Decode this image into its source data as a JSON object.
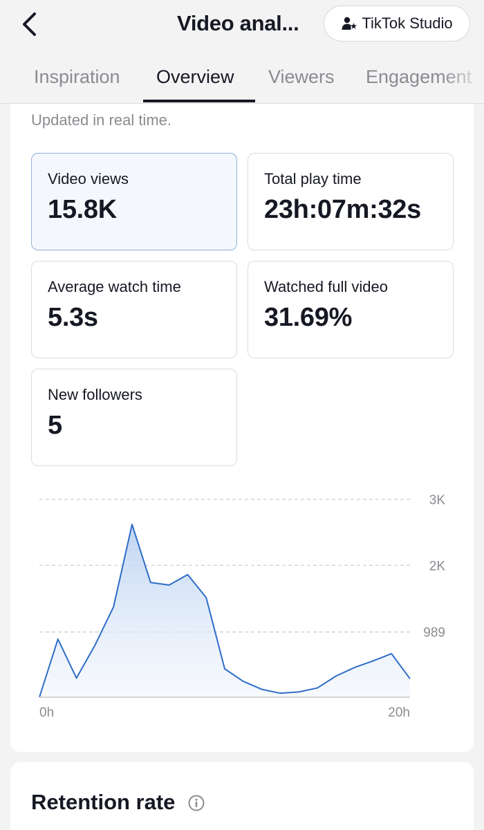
{
  "header": {
    "title": "Video anal...",
    "studio_label": "TikTok Studio"
  },
  "tabs": [
    {
      "label": "Inspiration"
    },
    {
      "label": "Overview"
    },
    {
      "label": "Viewers"
    },
    {
      "label": "Engagement"
    }
  ],
  "overview": {
    "updated_text": "Updated in real time.",
    "metrics": [
      {
        "label": "Video views",
        "value": "15.8K"
      },
      {
        "label": "Total play time",
        "value": "23h:07m:32s"
      },
      {
        "label": "Average watch time",
        "value": "5.3s"
      },
      {
        "label": "Watched full video",
        "value": "31.69%"
      },
      {
        "label": "New followers",
        "value": "5"
      }
    ]
  },
  "chart_data": {
    "type": "area",
    "x_tick_labels": [
      "0h",
      "20h"
    ],
    "y_tick_labels": [
      "989",
      "2K",
      "3K"
    ],
    "y_tick_values": [
      989,
      2000,
      3000
    ],
    "xlim": [
      0,
      20
    ],
    "ylim": [
      0,
      3000
    ],
    "x": [
      0,
      1,
      2,
      3,
      4,
      5,
      6,
      7,
      8,
      9,
      10,
      11,
      12,
      13,
      14,
      15,
      16,
      17,
      18,
      19,
      20
    ],
    "values": [
      0,
      880,
      290,
      790,
      1370,
      2620,
      1740,
      1700,
      1860,
      1510,
      430,
      240,
      120,
      60,
      80,
      140,
      320,
      450,
      550,
      660,
      280
    ],
    "grid": true,
    "color": "#2e6cc7"
  },
  "retention": {
    "title": "Retention rate"
  }
}
